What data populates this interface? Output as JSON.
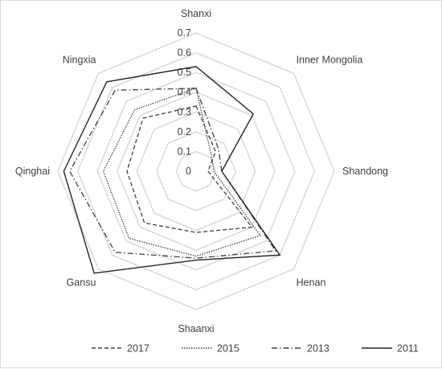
{
  "chart_data": {
    "type": "radar",
    "title": "",
    "axes": [
      "Shanxi",
      "Inner Mongolia",
      "Shandong",
      "Henan",
      "Shaanxi",
      "Gansu",
      "Qinghai",
      "Ningxia"
    ],
    "rlim": [
      0,
      0.7
    ],
    "ticks": [
      "0",
      "0.1",
      "0.2",
      "0.3",
      "0.4",
      "0.5",
      "0.6",
      "0.7"
    ],
    "grid": true,
    "legend_position": "bottom",
    "series": [
      {
        "name": "2017",
        "values": [
          0.33,
          0.14,
          0.06,
          0.4,
          0.31,
          0.37,
          0.35,
          0.38
        ],
        "color": "#404040",
        "dash": "dashed"
      },
      {
        "name": "2015",
        "values": [
          0.42,
          0.11,
          0.09,
          0.46,
          0.43,
          0.48,
          0.47,
          0.44
        ],
        "color": "#404040",
        "dash": "dotted"
      },
      {
        "name": "2013",
        "values": [
          0.42,
          0.16,
          0.13,
          0.57,
          0.44,
          0.58,
          0.64,
          0.58
        ],
        "color": "#404040",
        "dash": "dashdot"
      },
      {
        "name": "2011",
        "values": [
          0.53,
          0.41,
          0.13,
          0.6,
          0.45,
          0.73,
          0.67,
          0.64
        ],
        "color": "#262626",
        "dash": "solid"
      }
    ]
  }
}
